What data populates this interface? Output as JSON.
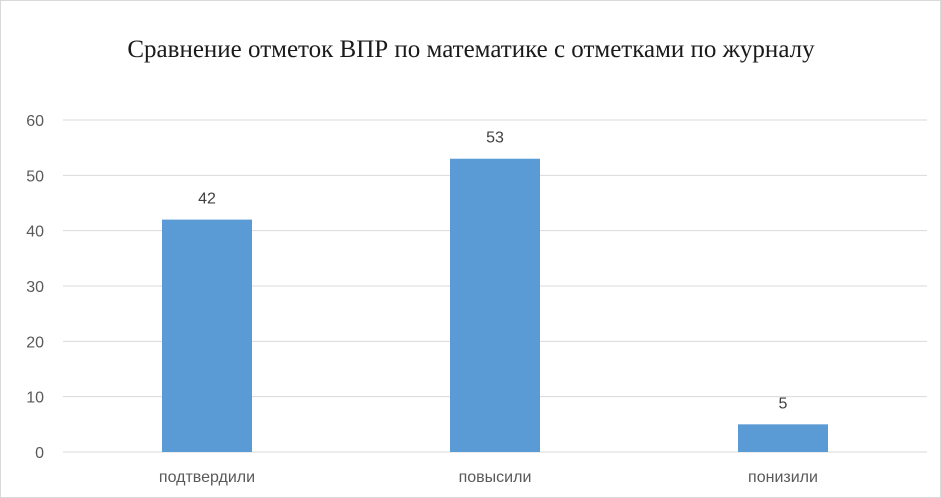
{
  "chart_data": {
    "type": "bar",
    "title": "Сравнение отметок ВПР по математике с отметками по журналу",
    "categories": [
      "подтвердили",
      "повысили",
      "понизили"
    ],
    "values": [
      42,
      53,
      5
    ],
    "ylim": [
      0,
      60
    ],
    "yticks": [
      0,
      10,
      20,
      30,
      40,
      50,
      60
    ],
    "grid": true,
    "legend": "none",
    "data_labels": true,
    "colors": {
      "bar": "#5b9bd5",
      "grid": "#d9d9d9",
      "axis": "#d9d9d9"
    }
  }
}
